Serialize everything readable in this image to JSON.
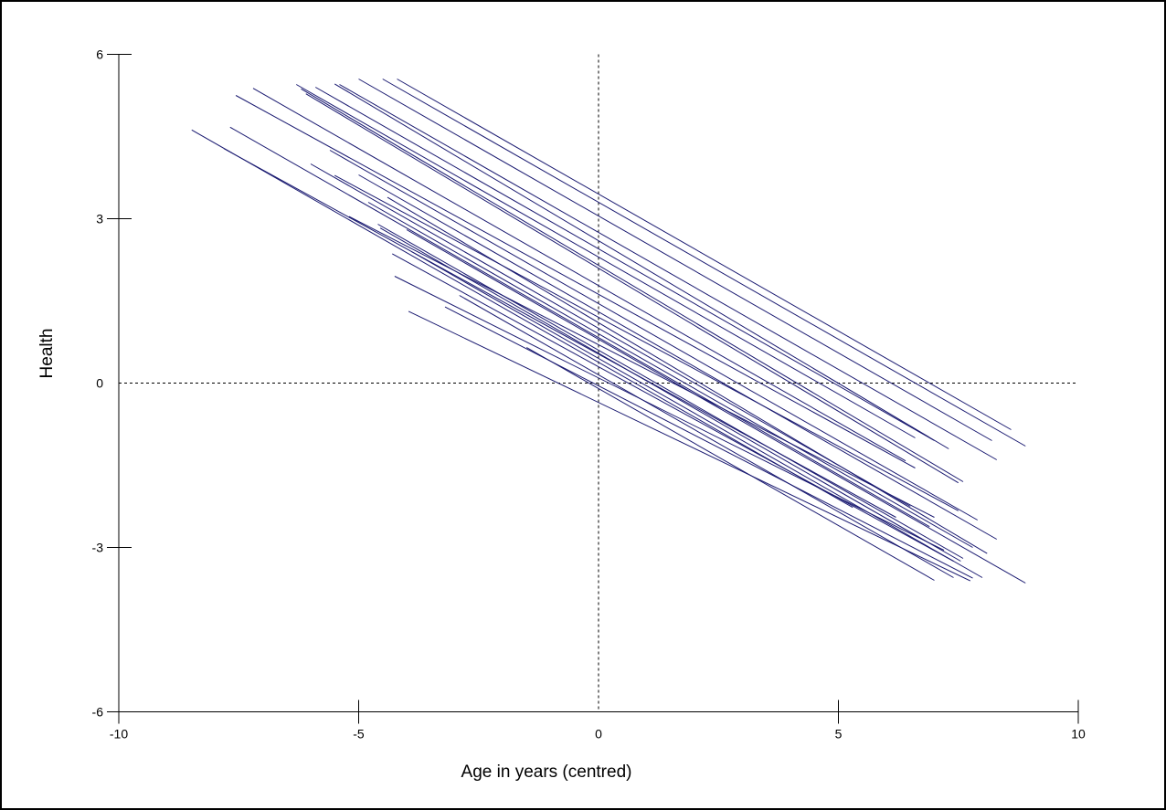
{
  "figure": {
    "background_color": "#ffffff",
    "border_color": "#000000",
    "axis_color": "#000000",
    "reference_line_color": "#000000",
    "line_color": "#191970"
  },
  "chart_data": {
    "type": "line",
    "title": "",
    "xlabel": "Age in years (centred)",
    "ylabel": "Health",
    "xlim": [
      -10,
      10
    ],
    "ylim": [
      -6,
      6
    ],
    "x_ticks": [
      -10,
      -5,
      0,
      5,
      10
    ],
    "x_tick_labels": [
      "-10",
      "-5",
      "0",
      "5",
      "10"
    ],
    "y_ticks": [
      6,
      3,
      0,
      -3,
      -6
    ],
    "y_tick_labels": [
      "6",
      "3",
      "0",
      "-3",
      "-6"
    ],
    "grid": false,
    "legend": null,
    "reference_lines": {
      "vertical_x": 0,
      "horizontal_y": 0,
      "style": "dashed"
    },
    "series_description": "Individual subject regression lines of Health on centred Age (spaghetti plot), each spanning that subject's observed age range; slopes approximately -0.4 to -0.55",
    "series": [
      {
        "name": "subject-line",
        "x": [
          -4.2,
          8.6
        ],
        "y": [
          5.55,
          -0.85
        ]
      },
      {
        "name": "subject-line",
        "x": [
          -4.5,
          8.9
        ],
        "y": [
          5.55,
          -1.15
        ]
      },
      {
        "name": "subject-line",
        "x": [
          -5.0,
          8.2
        ],
        "y": [
          5.55,
          -1.05
        ]
      },
      {
        "name": "subject-line",
        "x": [
          -5.4,
          8.3
        ],
        "y": [
          5.45,
          -1.4
        ]
      },
      {
        "name": "subject-line",
        "x": [
          -5.5,
          7.3
        ],
        "y": [
          5.46,
          -1.2
        ]
      },
      {
        "name": "subject-line",
        "x": [
          -5.9,
          7.0
        ],
        "y": [
          5.4,
          -1.05
        ]
      },
      {
        "name": "subject-line",
        "x": [
          -6.3,
          6.6
        ],
        "y": [
          5.45,
          -1.0
        ]
      },
      {
        "name": "subject-line",
        "x": [
          -6.2,
          7.6
        ],
        "y": [
          5.37,
          -1.8
        ]
      },
      {
        "name": "subject-line",
        "x": [
          -6.1,
          7.5
        ],
        "y": [
          5.28,
          -1.82
        ]
      },
      {
        "name": "subject-line",
        "x": [
          -7.2,
          6.4
        ],
        "y": [
          5.38,
          -1.42
        ]
      },
      {
        "name": "subject-line",
        "x": [
          -7.56,
          6.6
        ],
        "y": [
          5.25,
          -1.55
        ]
      },
      {
        "name": "subject-line",
        "x": [
          -7.68,
          6.9
        ],
        "y": [
          4.67,
          -2.62
        ]
      },
      {
        "name": "subject-line",
        "x": [
          -8.48,
          5.3
        ],
        "y": [
          4.62,
          -2.27
        ]
      },
      {
        "name": "subject-line",
        "x": [
          -7.81,
          6.2
        ],
        "y": [
          4.28,
          -2.45
        ]
      },
      {
        "name": "subject-line",
        "x": [
          -5.6,
          7.9
        ],
        "y": [
          4.25,
          -2.5
        ]
      },
      {
        "name": "subject-line",
        "x": [
          -5.0,
          8.3
        ],
        "y": [
          3.8,
          -2.85
        ]
      },
      {
        "name": "subject-line",
        "x": [
          -5.5,
          7.5
        ],
        "y": [
          3.79,
          -2.33
        ]
      },
      {
        "name": "subject-line",
        "x": [
          -4.4,
          8.1
        ],
        "y": [
          3.39,
          -3.11
        ]
      },
      {
        "name": "subject-line",
        "x": [
          -6.0,
          6.5
        ],
        "y": [
          4.0,
          -2.25
        ]
      },
      {
        "name": "subject-line",
        "x": [
          -4.8,
          7.8
        ],
        "y": [
          3.3,
          -3.0
        ]
      },
      {
        "name": "subject-line",
        "x": [
          -4.0,
          8.9
        ],
        "y": [
          2.8,
          -3.65
        ]
      },
      {
        "name": "subject-line",
        "x": [
          -5.2,
          7.0
        ],
        "y": [
          3.04,
          -2.45
        ]
      },
      {
        "name": "subject-line",
        "x": [
          -4.6,
          7.6
        ],
        "y": [
          2.9,
          -3.2
        ]
      },
      {
        "name": "subject-line",
        "x": [
          -4.55,
          7.55
        ],
        "y": [
          2.83,
          -3.25
        ]
      },
      {
        "name": "subject-line",
        "x": [
          -3.9,
          8.0
        ],
        "y": [
          2.4,
          -3.55
        ]
      },
      {
        "name": "subject-line",
        "x": [
          -4.3,
          7.4
        ],
        "y": [
          2.36,
          -3.25
        ]
      },
      {
        "name": "subject-line",
        "x": [
          -2.9,
          7.4
        ],
        "y": [
          1.6,
          -3.55
        ]
      },
      {
        "name": "subject-line",
        "x": [
          -3.2,
          7.8
        ],
        "y": [
          1.39,
          -3.56
        ]
      },
      {
        "name": "subject-line",
        "x": [
          -3.96,
          7.75
        ],
        "y": [
          1.31,
          -3.61
        ]
      },
      {
        "name": "subject-line",
        "x": [
          -4.25,
          7.2
        ],
        "y": [
          1.95,
          -3.05
        ]
      },
      {
        "name": "subject-line",
        "x": [
          -1.5,
          7.0
        ],
        "y": [
          0.65,
          -3.6
        ]
      }
    ]
  }
}
